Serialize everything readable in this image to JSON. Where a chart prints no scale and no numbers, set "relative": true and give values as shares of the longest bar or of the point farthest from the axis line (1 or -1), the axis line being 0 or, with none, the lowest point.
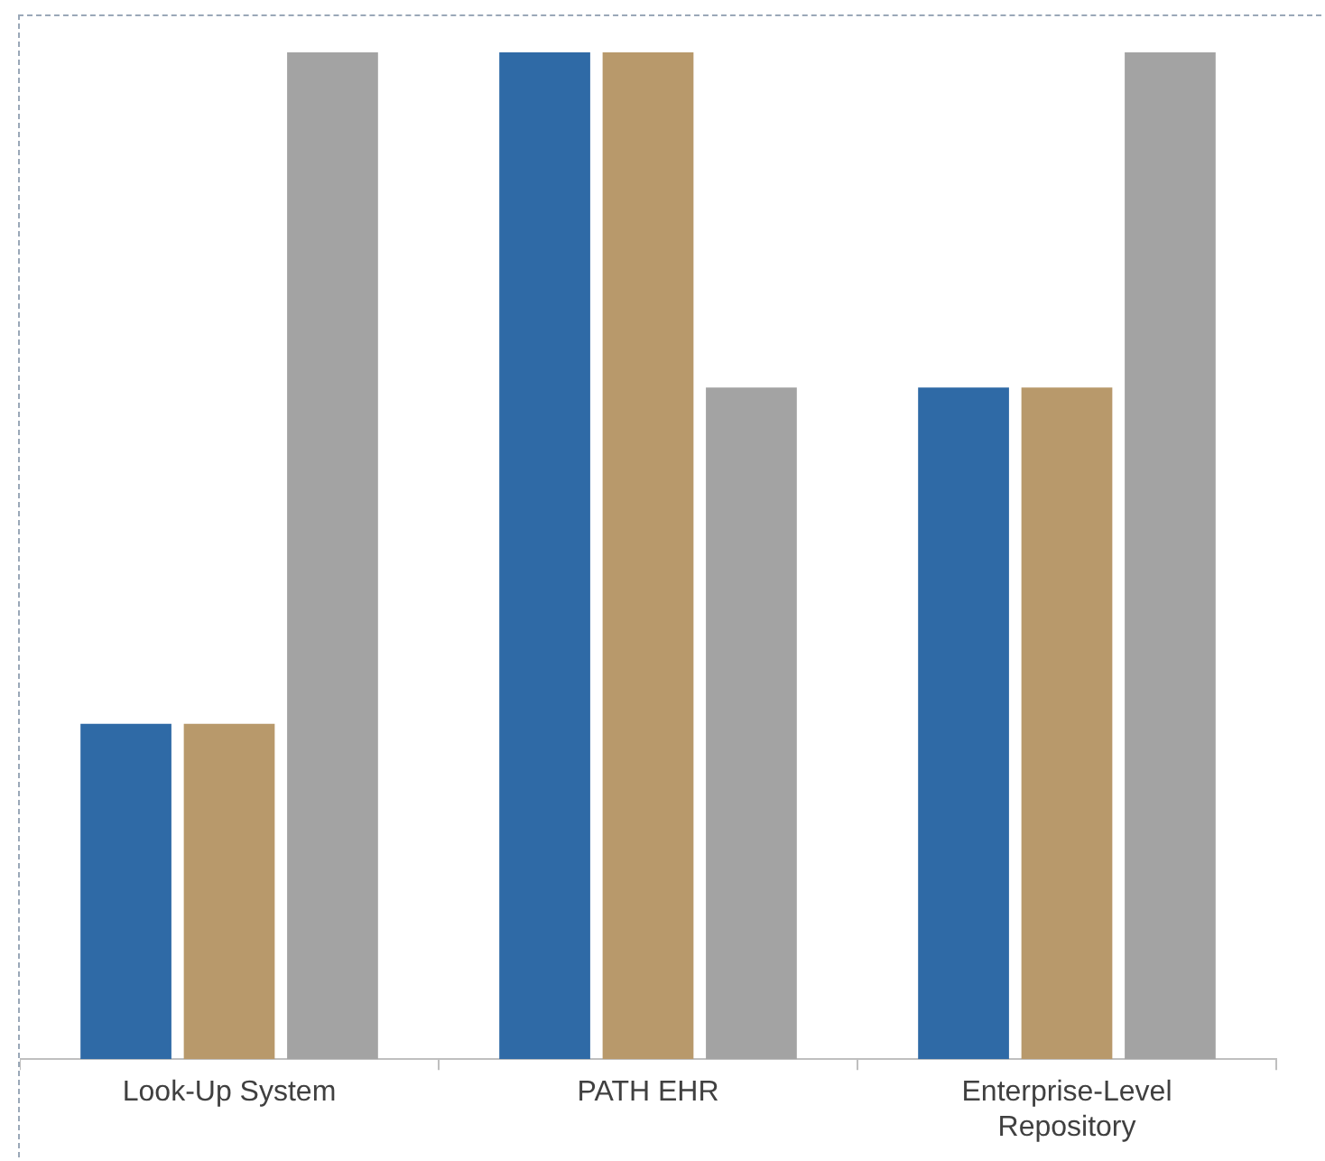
{
  "chart_data": {
    "type": "bar",
    "relative": true,
    "categories": [
      "Look-Up System",
      "PATH EHR",
      "Enterprise-Level Repository"
    ],
    "series": [
      {
        "color": "#2f6aa6",
        "values": [
          0.333,
          1,
          0.667
        ]
      },
      {
        "color": "#b8996b",
        "values": [
          0.333,
          1,
          0.667
        ]
      },
      {
        "color": "#a3a3a3",
        "values": [
          1,
          0.667,
          1
        ]
      }
    ],
    "grid": false,
    "legend": false
  }
}
